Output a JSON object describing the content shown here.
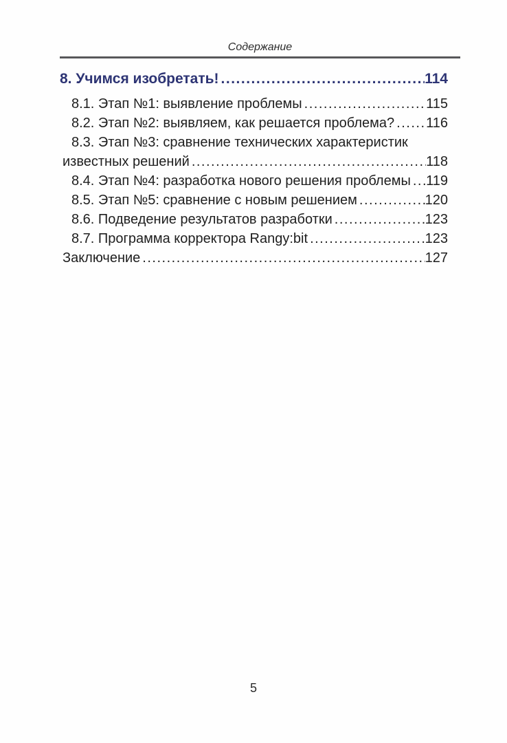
{
  "header": {
    "title": "Содержание"
  },
  "footer": {
    "page_number": "5"
  },
  "toc": {
    "rows": [
      {
        "text": "8. Учимся изобретать!",
        "page": "114",
        "style": "chapter"
      },
      {
        "text": "8.1. Этап №1: выявление проблемы",
        "page": "115",
        "style": "entry"
      },
      {
        "text": "8.2. Этап №2: выявляем, как решается проблема?",
        "page": "116",
        "style": "entry"
      },
      {
        "text": "8.3. Этап №3: сравнение технических характеристик",
        "page": null,
        "style": "entry"
      },
      {
        "text": "известных решений",
        "page": "118",
        "style": "flush"
      },
      {
        "text": "8.4. Этап №4: разработка нового решения проблемы",
        "page": "119",
        "style": "entry"
      },
      {
        "text": "8.5. Этап №5: сравнение с новым решением",
        "page": "120",
        "style": "entry"
      },
      {
        "text": "8.6. Подведение результатов разработки",
        "page": "123",
        "style": "entry"
      },
      {
        "text": "8.7. Программа корректора Rangy:bit",
        "page": "123",
        "style": "entry"
      },
      {
        "text": "Заключение",
        "page": "127",
        "style": "flush"
      }
    ]
  },
  "colors": {
    "chapter_blue": "#2d3474",
    "body_text": "#1e1e1e",
    "rule_gray": "#57575a",
    "page_background": "#fefefe"
  }
}
